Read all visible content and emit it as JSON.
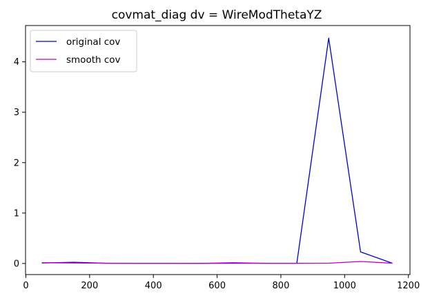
{
  "chart_data": {
    "type": "line",
    "title": "covmat_diag dv = WireModThetaYZ",
    "xlabel": "",
    "ylabel": "",
    "xlim": [
      -1,
      1205
    ],
    "ylim": [
      -0.22,
      4.72
    ],
    "xticks": [
      0,
      200,
      400,
      600,
      800,
      1000,
      1200
    ],
    "yticks": [
      0,
      1,
      2,
      3,
      4
    ],
    "grid": false,
    "legend": {
      "placement": "top-left"
    },
    "series": [
      {
        "name": "original cov",
        "color": "#0000cc",
        "x": [
          50,
          150,
          250,
          350,
          450,
          550,
          650,
          750,
          850,
          950,
          1050,
          1150
        ],
        "y": [
          0.01,
          0.025,
          0.005,
          0.003,
          0.002,
          0.003,
          0.005,
          0.004,
          0.005,
          4.47,
          0.23,
          0.005
        ]
      },
      {
        "name": "smooth cov",
        "color": "#c000c0",
        "x": [
          50,
          150,
          250,
          350,
          450,
          550,
          650,
          750,
          850,
          950,
          1050,
          1150
        ],
        "y": [
          0.015,
          0.01,
          0.005,
          0.004,
          0.003,
          0.002,
          0.015,
          0.004,
          0.003,
          0.006,
          0.04,
          0.005
        ]
      }
    ]
  }
}
